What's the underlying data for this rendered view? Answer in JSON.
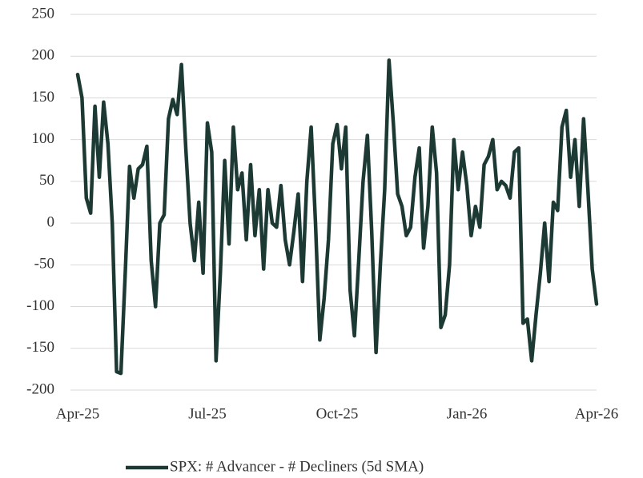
{
  "chart_data": {
    "type": "line",
    "categories": [
      "Apr-25",
      null,
      null,
      null,
      null,
      null,
      null,
      null,
      null,
      null,
      null,
      null,
      null,
      null,
      null,
      null,
      null,
      null,
      null,
      null,
      null,
      null,
      null,
      null,
      null,
      null,
      null,
      null,
      null,
      null,
      "Jul-25",
      null,
      null,
      null,
      null,
      null,
      null,
      null,
      null,
      null,
      null,
      null,
      null,
      null,
      null,
      null,
      null,
      null,
      null,
      null,
      null,
      null,
      null,
      null,
      null,
      null,
      null,
      null,
      null,
      null,
      "Oct-25",
      null,
      null,
      null,
      null,
      null,
      null,
      null,
      null,
      null,
      null,
      null,
      null,
      null,
      null,
      null,
      null,
      null,
      null,
      null,
      null,
      null,
      null,
      null,
      null,
      null,
      null,
      null,
      null,
      null,
      "Jan-26",
      null,
      null,
      null,
      null,
      null,
      null,
      null,
      null,
      null,
      null,
      null,
      null,
      null,
      null,
      null,
      null,
      null,
      null,
      null,
      null,
      null,
      null,
      null,
      null,
      null,
      null,
      null,
      null,
      null,
      "Apr-26"
    ],
    "series": [
      {
        "name": "SPX: # Advancer - # Decliners (5d SMA)",
        "color": "#1c3a33",
        "values": [
          178,
          150,
          30,
          12,
          140,
          55,
          145,
          95,
          0,
          -178,
          -180,
          -60,
          68,
          30,
          65,
          70,
          92,
          -45,
          -100,
          0,
          10,
          125,
          148,
          130,
          190,
          90,
          0,
          -45,
          25,
          -60,
          120,
          85,
          -165,
          -60,
          75,
          -25,
          115,
          40,
          60,
          -20,
          70,
          -15,
          40,
          -55,
          40,
          0,
          -5,
          45,
          -20,
          -50,
          -10,
          35,
          -70,
          50,
          115,
          0,
          -140,
          -90,
          -20,
          95,
          118,
          65,
          115,
          -80,
          -135,
          -45,
          50,
          105,
          -10,
          -155,
          -50,
          40,
          195,
          120,
          35,
          20,
          -15,
          -5,
          55,
          90,
          -30,
          20,
          115,
          60,
          -125,
          -110,
          -50,
          100,
          40,
          85,
          45,
          -15,
          20,
          -5,
          70,
          80,
          100,
          40,
          50,
          45,
          30,
          85,
          90,
          -120,
          -115,
          -165,
          -110,
          -60,
          0,
          -70,
          25,
          15,
          115,
          135,
          55,
          100,
          20,
          125,
          40,
          -55,
          -97
        ]
      }
    ],
    "ylim": [
      -200,
      250
    ],
    "yticks": [
      -200,
      -150,
      -100,
      -50,
      0,
      50,
      100,
      150,
      200,
      250
    ],
    "grid": true,
    "legend": "bottom"
  }
}
